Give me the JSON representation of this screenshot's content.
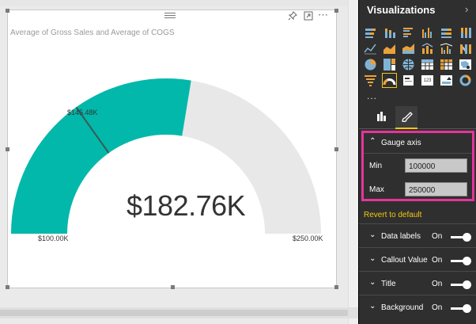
{
  "visual": {
    "title": "Average of Gross Sales and Average of COGS",
    "icons": [
      "pin-icon",
      "focus-mode-icon",
      "more-options-icon"
    ]
  },
  "gauge": {
    "value_label": "$182.76K",
    "min_label": "$100.00K",
    "max_label": "$250.00K",
    "target_label": "$145.48K",
    "min": 100000,
    "max": 250000,
    "value": 182760,
    "target": 145480,
    "fill_color": "#01b8aa",
    "track_color": "#e8e8e8",
    "target_color": "#3a5a56"
  },
  "pane": {
    "title": "Visualizations",
    "more_label": "...",
    "viz_icons": [
      "stacked-bar-icon",
      "stacked-column-icon",
      "clustered-bar-icon",
      "clustered-column-icon",
      "100-bar-icon",
      "100-column-icon",
      "line-chart-icon",
      "area-chart-icon",
      "stacked-area-icon",
      "line-column-icon",
      "line-clustered-icon",
      "ribbon-chart-icon",
      "pie-chart-icon",
      "treemap-icon",
      "map-icon",
      "table-icon",
      "matrix-icon",
      "filled-map-icon",
      "funnel-icon",
      "gauge-icon",
      "card-icon",
      "multi-row-card-icon",
      "kpi-icon",
      "donut-icon"
    ],
    "selected_viz": "gauge-icon",
    "tabs": [
      "fields-tab-icon",
      "format-tab-icon"
    ]
  },
  "format": {
    "gauge_axis": {
      "header": "Gauge axis",
      "min_label": "Min",
      "min_value": "100000",
      "max_label": "Max",
      "max_value": "250000",
      "revert": "Revert to default"
    },
    "rows": [
      {
        "label": "Data labels",
        "state": "On"
      },
      {
        "label": "Callout Value",
        "state": "On"
      },
      {
        "label": "Title",
        "state": "On"
      },
      {
        "label": "Background",
        "state": "On"
      }
    ]
  },
  "colors": {
    "pane_bg": "#2f2f2f",
    "accent_yellow": "#f2c811",
    "highlight_pink": "#e6349c",
    "viz_orange": "#e8a23c",
    "viz_blue": "#7fb3d5"
  }
}
